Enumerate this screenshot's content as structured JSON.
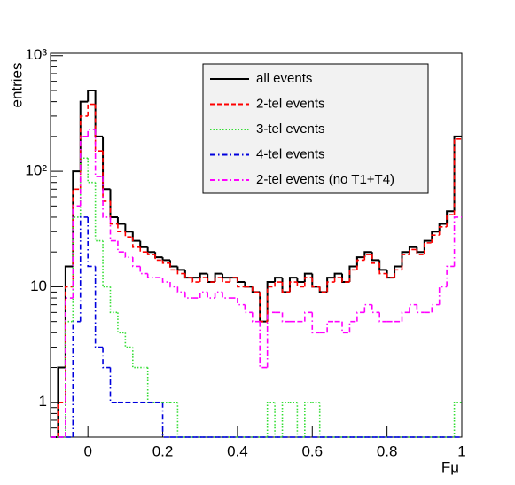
{
  "chart_data": {
    "type": "histogram",
    "x_label": "Fμ",
    "y_label": "entries",
    "log_y": true,
    "legend": "top right",
    "xlim": [
      -0.1,
      1.0
    ],
    "ylim": [
      0.5,
      1050
    ],
    "xticks": [
      0,
      0.2,
      0.4,
      0.6,
      0.8,
      1
    ],
    "yticks": [
      1,
      10,
      {
        "value": 100,
        "label": "10²"
      },
      {
        "value": 1000,
        "label": "10³"
      }
    ],
    "bins": [
      -0.1,
      -0.08,
      -0.06,
      -0.04,
      -0.02,
      0,
      0.02,
      0.04,
      0.06,
      0.08,
      0.1,
      0.12,
      0.14,
      0.16,
      0.18,
      0.2,
      0.22,
      0.24,
      0.26,
      0.28,
      0.3,
      0.32,
      0.34,
      0.36,
      0.38,
      0.4,
      0.42,
      0.44,
      0.46,
      0.48,
      0.5,
      0.52,
      0.54,
      0.56,
      0.58,
      0.6,
      0.62,
      0.64,
      0.66,
      0.68,
      0.7,
      0.72,
      0.74,
      0.76,
      0.78,
      0.8,
      0.82,
      0.84,
      0.86,
      0.88,
      0.9,
      0.92,
      0.94,
      0.96,
      0.98,
      1
    ],
    "series": [
      {
        "name": "all events",
        "color": "#000000",
        "linestyle": "solid",
        "values": [
          0,
          2,
          15,
          100,
          400,
          500,
          200,
          70,
          40,
          35,
          30,
          25,
          22,
          20,
          18,
          17,
          15,
          14,
          12,
          12,
          13,
          11,
          13,
          12,
          12,
          11,
          10,
          9,
          5,
          11,
          12,
          9,
          12,
          11,
          13,
          10,
          9,
          12,
          13,
          11,
          15,
          18,
          20,
          17,
          14,
          12,
          15,
          20,
          22,
          20,
          25,
          30,
          35,
          45,
          200
        ]
      },
      {
        "name": "2-tel events",
        "color": "#ff0000",
        "linestyle": "dashed",
        "values": [
          0,
          1,
          10,
          70,
          300,
          380,
          150,
          55,
          35,
          30,
          27,
          22,
          20,
          19,
          17,
          16,
          14,
          13,
          12,
          11,
          12,
          11,
          12,
          11,
          12,
          10,
          10,
          9,
          5,
          10,
          11,
          9,
          11,
          10,
          12,
          10,
          9,
          11,
          12,
          11,
          14,
          17,
          19,
          16,
          13,
          12,
          14,
          19,
          21,
          19,
          24,
          28,
          33,
          42,
          190
        ]
      },
      {
        "name": "3-tel events",
        "color": "#33dd33",
        "linestyle": "dotted",
        "values": [
          0,
          0,
          5,
          40,
          130,
          80,
          25,
          10,
          6,
          4,
          3,
          2,
          2,
          1,
          1,
          1,
          1,
          0,
          0,
          0,
          0,
          0,
          0,
          0,
          0,
          0,
          0,
          0,
          0,
          1,
          0,
          1,
          1,
          0,
          1,
          1,
          0,
          0,
          0,
          0,
          0,
          0,
          0,
          0,
          0,
          0,
          0,
          0,
          0,
          0,
          0,
          0,
          0,
          0,
          1
        ]
      },
      {
        "name": "4-tel events",
        "color": "#0000dd",
        "linestyle": "dashdot",
        "values": [
          0,
          0,
          0,
          5,
          40,
          15,
          3,
          2,
          1,
          1,
          1,
          1,
          1,
          1,
          1,
          0,
          0,
          0,
          0,
          0,
          0,
          0,
          0,
          0,
          0,
          0,
          0,
          0,
          0,
          0,
          0,
          0,
          0,
          0,
          0,
          0,
          0,
          0,
          0,
          0,
          0,
          0,
          0,
          0,
          0,
          0,
          0,
          0,
          0,
          0,
          0,
          0,
          0,
          0,
          0
        ]
      },
      {
        "name": "2-tel events (no T1+T4)",
        "color": "#ff00ff",
        "linestyle": "dashdot",
        "values": [
          0,
          0,
          8,
          50,
          200,
          230,
          90,
          40,
          25,
          20,
          18,
          15,
          13,
          12,
          12,
          11,
          10,
          9,
          8,
          8,
          9,
          8,
          9,
          8,
          8,
          7,
          6,
          5,
          2,
          6,
          6,
          5,
          5,
          5,
          6,
          4,
          4,
          5,
          5,
          4,
          5,
          6,
          7,
          6,
          5,
          5,
          5,
          6,
          7,
          6,
          6,
          7,
          10,
          15,
          40
        ]
      }
    ]
  }
}
